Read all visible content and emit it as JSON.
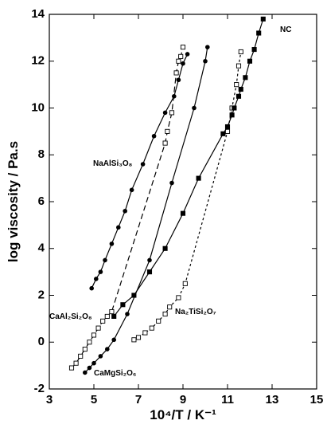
{
  "chart_data": {
    "type": "line",
    "x_label": "10⁴/T / K⁻¹",
    "y_label": "log viscosity / Pa.s",
    "xlim": [
      3,
      15
    ],
    "xticks": [
      3,
      5,
      7,
      9,
      11,
      13,
      15
    ],
    "ylim": [
      -2,
      14
    ],
    "yticks": [
      -2,
      0,
      2,
      4,
      6,
      8,
      10,
      12,
      14
    ],
    "series": [
      {
        "name": "NaAlSi₃O₈",
        "color": "#000000",
        "marker": "circle-filled",
        "dash": "solid",
        "x": [
          4.9,
          5.1,
          5.3,
          5.5,
          5.8,
          6.1,
          6.4,
          6.7,
          7.2,
          7.7,
          8.2,
          8.6,
          8.8,
          9.0,
          9.2
        ],
        "values": [
          2.3,
          2.7,
          3.0,
          3.5,
          4.2,
          4.9,
          5.6,
          6.5,
          7.6,
          8.8,
          9.8,
          10.5,
          11.2,
          11.9,
          12.3
        ]
      },
      {
        "name": "CaAl₂Si₂O₈",
        "color": "#000000",
        "marker": "square-open",
        "dash": "long",
        "x": [
          4.0,
          4.2,
          4.4,
          4.6,
          4.8,
          5.0,
          5.2,
          5.4,
          5.6,
          5.8,
          8.2,
          8.3,
          8.5,
          8.7,
          8.8,
          8.9,
          9.0
        ],
        "values": [
          -1.1,
          -0.9,
          -0.6,
          -0.3,
          0.0,
          0.3,
          0.6,
          0.9,
          1.1,
          1.3,
          8.5,
          9.0,
          9.8,
          11.5,
          12.0,
          12.2,
          12.6
        ]
      },
      {
        "name": "CaMgSi₂O₆",
        "color": "#000000",
        "marker": "circle-filled",
        "dash": "solid",
        "x": [
          4.6,
          4.8,
          5.0,
          5.3,
          5.6,
          5.9,
          6.5,
          7.5,
          8.5,
          9.5,
          10.0,
          10.1
        ],
        "values": [
          -1.3,
          -1.1,
          -0.9,
          -0.6,
          -0.3,
          0.1,
          1.2,
          3.5,
          6.8,
          10.0,
          12.0,
          12.6
        ]
      },
      {
        "name": "Na₂TiSi₂O₇",
        "color": "#000000",
        "marker": "square-open",
        "dash": "short",
        "x": [
          6.8,
          7.0,
          7.3,
          7.6,
          7.9,
          8.2,
          8.4,
          8.8,
          9.1,
          11.0,
          11.2,
          11.4,
          11.5,
          11.6
        ],
        "values": [
          0.1,
          0.2,
          0.4,
          0.6,
          0.9,
          1.2,
          1.5,
          1.9,
          2.5,
          9.0,
          10.0,
          11.0,
          11.8,
          12.4
        ]
      },
      {
        "name": "NC",
        "color": "#000000",
        "marker": "square-filled",
        "dash": "solid",
        "x": [
          5.9,
          6.3,
          6.8,
          7.5,
          8.2,
          9.0,
          9.7,
          10.8,
          11.0,
          11.2,
          11.3,
          11.5,
          11.6,
          11.8,
          12.0,
          12.2,
          12.4,
          12.6
        ],
        "values": [
          1.1,
          1.6,
          2.0,
          3.0,
          4.0,
          5.5,
          7.0,
          8.9,
          9.2,
          9.7,
          10.0,
          10.5,
          10.8,
          11.3,
          12.0,
          12.5,
          13.2,
          13.8
        ]
      }
    ]
  }
}
